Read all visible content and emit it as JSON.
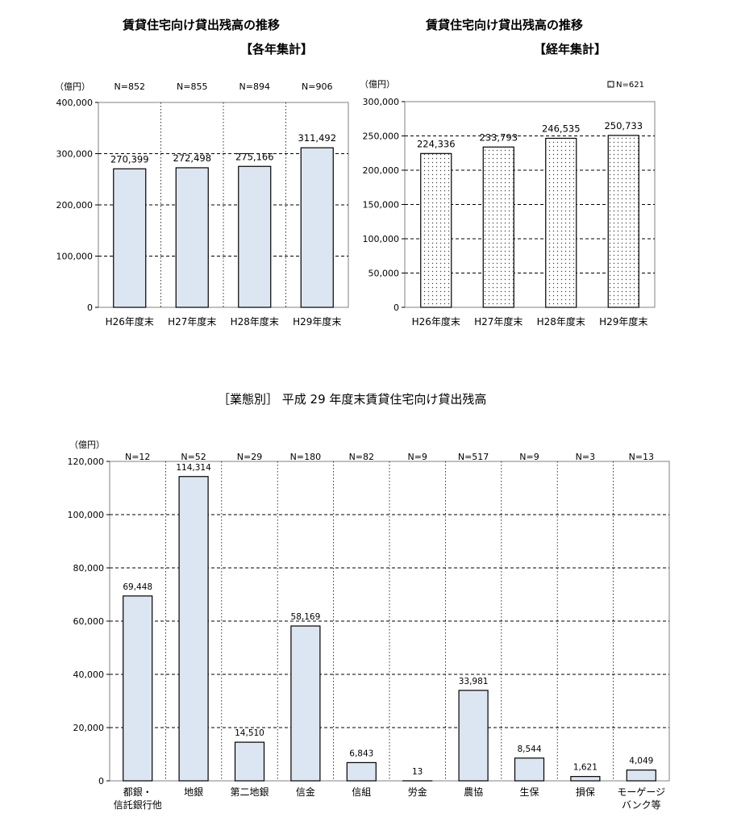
{
  "chart_data": [
    {
      "type": "bar",
      "title": "賃貸住宅向け貸出残高の推移",
      "subtitle": "【各年集計】",
      "ylabel": "（億円）",
      "ylim": [
        0,
        400000
      ],
      "yticks": [
        0,
        100000,
        200000,
        300000,
        400000
      ],
      "ytick_labels": [
        "0",
        "100,000",
        "200,000",
        "300,000",
        "400,000"
      ],
      "categories": [
        "H26年度末",
        "H27年度末",
        "H28年度末",
        "H29年度末"
      ],
      "n_labels": [
        "N=852",
        "N=855",
        "N=894",
        "N=906"
      ],
      "values": [
        270399,
        272498,
        275166,
        311492
      ],
      "value_labels": [
        "270,399",
        "272,498",
        "275,166",
        "311,492"
      ],
      "bar_color": "#dce6f2",
      "grid": true
    },
    {
      "type": "bar",
      "title": "賃貸住宅向け貸出残高の推移",
      "subtitle": "【経年集計】",
      "ylabel": "（億円）",
      "ylim": [
        0,
        300000
      ],
      "yticks": [
        0,
        50000,
        100000,
        150000,
        200000,
        250000,
        300000
      ],
      "ytick_labels": [
        "0",
        "50,000",
        "100,000",
        "150,000",
        "200,000",
        "250,000",
        "300,000"
      ],
      "categories": [
        "H26年度末",
        "H27年度末",
        "H28年度末",
        "H29年度末"
      ],
      "values": [
        224336,
        233793,
        246535,
        250733
      ],
      "value_labels": [
        "224,336",
        "233,793",
        "246,535",
        "250,733"
      ],
      "legend": "N=621",
      "legend_position": "top-right",
      "bar_pattern": "dotted",
      "grid": true
    },
    {
      "type": "bar",
      "title": "［業態別］ 平成 29 年度末賃貸住宅向け貸出残高",
      "ylabel": "（億円）",
      "ylim": [
        0,
        120000
      ],
      "yticks": [
        0,
        20000,
        40000,
        60000,
        80000,
        100000,
        120000
      ],
      "ytick_labels": [
        "0",
        "20,000",
        "40,000",
        "60,000",
        "80,000",
        "100,000",
        "120,000"
      ],
      "categories": [
        [
          "都銀・",
          "信託銀行他"
        ],
        [
          "地銀"
        ],
        [
          "第二地銀"
        ],
        [
          "信金"
        ],
        [
          "信組"
        ],
        [
          "労金"
        ],
        [
          "農協"
        ],
        [
          "生保"
        ],
        [
          "損保"
        ],
        [
          "モーゲージ",
          "バンク等"
        ]
      ],
      "n_labels": [
        "N=12",
        "N=52",
        "N=29",
        "N=180",
        "N=82",
        "N=9",
        "N=517",
        "N=9",
        "N=3",
        "N=13"
      ],
      "values": [
        69448,
        114314,
        14510,
        58169,
        6843,
        13,
        33981,
        8544,
        1621,
        4049
      ],
      "value_labels": [
        "69,448",
        "114,314",
        "14,510",
        "58,169",
        "6,843",
        "13",
        "33,981",
        "8,544",
        "1,621",
        "4,049"
      ],
      "bar_color": "#dce6f2",
      "grid": true
    }
  ]
}
